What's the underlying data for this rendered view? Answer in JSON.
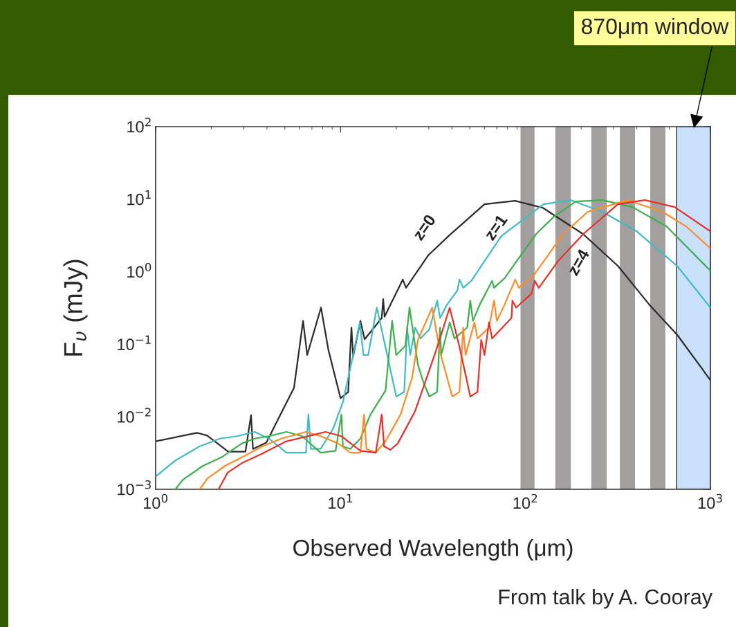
{
  "chart_data": {
    "type": "line",
    "xlabel": "Observed Wavelength (μm)",
    "ylabel": "F$_{υ}$ (mJy)",
    "log": "xy",
    "xlim": [
      1,
      1000
    ],
    "ylim": [
      0.001,
      100
    ],
    "xticks": [
      {
        "value": 1,
        "label": "10$^{0}$"
      },
      {
        "value": 10,
        "label": "10$^{1}$"
      },
      {
        "value": 100,
        "label": "10$^{2}$"
      },
      {
        "value": 1000,
        "label": "10$^{3}$"
      }
    ],
    "yticks": [
      {
        "value": 0.001,
        "label": "10$^{−3}$"
      },
      {
        "value": 0.01,
        "label": "10$^{−2}$"
      },
      {
        "value": 0.1,
        "label": "10$^{−1}$"
      },
      {
        "value": 1,
        "label": "10$^{0}$"
      },
      {
        "value": 10,
        "label": "10$^{1}$"
      },
      {
        "value": 100,
        "label": "10$^{2}$"
      }
    ],
    "series": [
      {
        "color": "#2b2b2b",
        "x": [
          1,
          1.68,
          1.9,
          2.47,
          3.06,
          3.28,
          3.36,
          3.97,
          4.71,
          5.6,
          6.27,
          6.6,
          7.84,
          8.6,
          10,
          11,
          11.45,
          11.7,
          12.8,
          13.5,
          16.7,
          17,
          17.3,
          21.7,
          22.6,
          29.9,
          38.9,
          60,
          88,
          124,
          205,
          316,
          468,
          661,
          1000
        ],
        "values": [
          0.0046,
          0.006,
          0.0055,
          0.0033,
          0.0033,
          0.0105,
          0.0036,
          0.0044,
          0.0105,
          0.025,
          0.21,
          0.071,
          0.32,
          0.083,
          0.018,
          0.022,
          0.17,
          0.068,
          0.21,
          0.117,
          0.23,
          0.42,
          0.24,
          0.78,
          0.6,
          1.7,
          3.2,
          8.5,
          9.5,
          7.6,
          3.3,
          1.2,
          0.35,
          0.135,
          0.032
        ]
      },
      {
        "color": "#3fbcc4",
        "x": [
          1,
          1.28,
          1.73,
          2.23,
          2.76,
          3.43,
          4.1,
          5.1,
          6.5,
          6.7,
          6.9,
          7.8,
          9.1,
          10.3,
          11.7,
          12.7,
          13.3,
          14.1,
          15.7,
          17.5,
          20,
          22.1,
          22.9,
          23.8,
          25.3,
          27,
          30.2,
          33.3,
          34.5,
          37.6,
          42.8,
          44,
          46,
          51,
          74,
          125,
          176,
          260,
          400,
          661,
          1000
        ],
        "values": [
          0.0015,
          0.0025,
          0.0039,
          0.005,
          0.0054,
          0.0062,
          0.005,
          0.0032,
          0.0032,
          0.0107,
          0.0036,
          0.0036,
          0.0068,
          0.016,
          0.071,
          0.2,
          0.071,
          0.071,
          0.32,
          0.091,
          0.019,
          0.022,
          0.17,
          0.071,
          0.17,
          0.12,
          0.16,
          0.4,
          0.23,
          0.35,
          0.55,
          0.78,
          0.6,
          0.75,
          3.1,
          8.5,
          9.7,
          6.7,
          3.6,
          1.2,
          0.32
        ]
      },
      {
        "color": "#3cb04a",
        "x": [
          1.28,
          1.4,
          1.8,
          2.29,
          2.93,
          3.43,
          4.1,
          5.1,
          6.2,
          7.8,
          9.4,
          10.1,
          10.3,
          11.3,
          12.8,
          14.5,
          17.5,
          19,
          20,
          22.4,
          23.6,
          26.2,
          27.8,
          30.2,
          33.3,
          34.5,
          35,
          38.9,
          41.3,
          48.4,
          50.3,
          52,
          56.5,
          66,
          67.6,
          77,
          114,
          142,
          187,
          260,
          378,
          580,
          1000
        ],
        "values": [
          0.001,
          0.00135,
          0.0021,
          0.0028,
          0.0043,
          0.005,
          0.0054,
          0.0062,
          0.0054,
          0.0032,
          0.0034,
          0.0107,
          0.0039,
          0.0036,
          0.005,
          0.0107,
          0.023,
          0.21,
          0.071,
          0.095,
          0.32,
          0.052,
          0.032,
          0.019,
          0.022,
          0.17,
          0.071,
          0.2,
          0.12,
          0.17,
          0.4,
          0.21,
          0.35,
          0.75,
          0.6,
          0.81,
          3.3,
          5.7,
          9.3,
          9.7,
          7.8,
          4.2,
          1.03
        ]
      },
      {
        "color": "#ff8c28",
        "x": [
          1.73,
          1.9,
          2.37,
          3.04,
          3.77,
          4.79,
          6.5,
          7.8,
          9.7,
          11.3,
          12.8,
          13.4,
          13.8,
          15.5,
          17.5,
          21.1,
          24.4,
          26.2,
          31.3,
          34.5,
          40.2,
          44,
          46,
          47.4,
          53,
          55,
          63.5,
          67.6,
          70,
          77,
          88,
          92,
          110,
          160,
          217,
          357,
          550,
          740,
          1000
        ],
        "values": [
          0.001,
          0.0014,
          0.0021,
          0.0029,
          0.0039,
          0.005,
          0.0062,
          0.0054,
          0.0043,
          0.0032,
          0.0032,
          0.0107,
          0.0036,
          0.0032,
          0.0046,
          0.0107,
          0.035,
          0.115,
          0.32,
          0.078,
          0.019,
          0.022,
          0.17,
          0.071,
          0.2,
          0.12,
          0.17,
          0.4,
          0.21,
          0.35,
          0.78,
          0.6,
          0.87,
          3.3,
          6.7,
          9.7,
          6.7,
          4.2,
          2.1
        ]
      },
      {
        "color": "#e8302a",
        "x": [
          2.19,
          2.45,
          2.93,
          3.77,
          5.1,
          6.9,
          8.3,
          10.1,
          12.8,
          15.5,
          16.7,
          17.2,
          18.6,
          20.4,
          25.3,
          28.4,
          33.3,
          38.9,
          44,
          50.3,
          55,
          57.6,
          60,
          63.5,
          66,
          84,
          85,
          89,
          108,
          112,
          118,
          150,
          205,
          316,
          442,
          640,
          1000
        ],
        "values": [
          0.001,
          0.0017,
          0.0023,
          0.0031,
          0.0046,
          0.0055,
          0.0062,
          0.0054,
          0.0034,
          0.0032,
          0.0107,
          0.0039,
          0.0035,
          0.0043,
          0.012,
          0.028,
          0.091,
          0.32,
          0.091,
          0.019,
          0.022,
          0.115,
          0.071,
          0.2,
          0.12,
          0.23,
          0.4,
          0.32,
          0.5,
          0.75,
          0.6,
          1.4,
          3.3,
          8.5,
          9.7,
          7.8,
          3.6
        ]
      }
    ],
    "bands": [
      {
        "axis": "x",
        "from": 94,
        "to": 112,
        "color": "#a39f9f"
      },
      {
        "axis": "x",
        "from": 145,
        "to": 176,
        "color": "#a39f9f"
      },
      {
        "axis": "x",
        "from": 227,
        "to": 275,
        "color": "#a39f9f"
      },
      {
        "axis": "x",
        "from": 324,
        "to": 391,
        "color": "#a39f9f"
      },
      {
        "axis": "x",
        "from": 473,
        "to": 571,
        "color": "#a39f9f"
      },
      {
        "axis": "x",
        "from": 656,
        "to": 1000,
        "color": "#c8e0fa",
        "label": "870μm window"
      }
    ],
    "annotations": [
      "z=0",
      "z=1",
      "z=4",
      "From talk by A. Cooray"
    ]
  }
}
